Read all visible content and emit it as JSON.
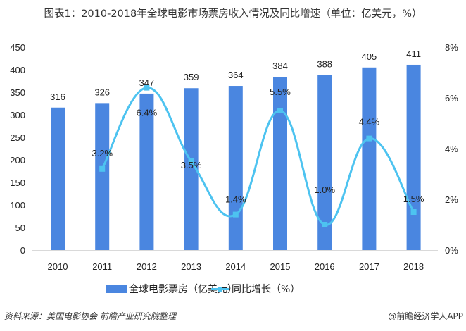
{
  "title": "图表1：2010-2018年全球电影市场票房收入情况及同比增速（单位：亿美元，%）",
  "chart_data": {
    "type": "bar+line",
    "title": "图表1：2010-2018年全球电影市场票房收入情况及同比增速（单位：亿美元，%）",
    "categories": [
      "2010",
      "2011",
      "2012",
      "2013",
      "2014",
      "2015",
      "2016",
      "2017",
      "2018"
    ],
    "series": [
      {
        "name": "全球电影票房（亿美元）",
        "type": "bar",
        "axis": "left",
        "color": "#4a86e0",
        "values": [
          316,
          326,
          347,
          359,
          364,
          384,
          388,
          405,
          411
        ],
        "labels": [
          "316",
          "326",
          "347",
          "359",
          "364",
          "384",
          "388",
          "405",
          "411"
        ]
      },
      {
        "name": "同比增长（%）",
        "type": "line",
        "axis": "right",
        "smooth": true,
        "color": "#4dc3f0",
        "values": [
          null,
          3.2,
          6.4,
          3.5,
          1.4,
          5.5,
          1.0,
          4.4,
          1.5
        ],
        "labels": [
          "",
          "3.2%",
          "6.4%",
          "3.5%",
          "1.4%",
          "5.5%",
          "1.0%",
          "4.4%",
          "1.5%"
        ]
      }
    ],
    "left_axis": {
      "min": 0,
      "max": 450,
      "ticks": [
        "0",
        "50",
        "100",
        "150",
        "200",
        "250",
        "300",
        "350",
        "400",
        "450"
      ]
    },
    "right_axis": {
      "min": 0,
      "max": 8,
      "ticks": [
        "0%",
        "2%",
        "4%",
        "6%",
        "8%"
      ]
    },
    "grid": false,
    "legend": "bottom"
  },
  "legend": {
    "bar": "全球电影票房（亿美元）",
    "line": "同比增长（%）"
  },
  "footer": {
    "source": "资料来源：美国电影协会 前瞻产业研究院整理",
    "credit": "@前瞻经济学人APP"
  }
}
